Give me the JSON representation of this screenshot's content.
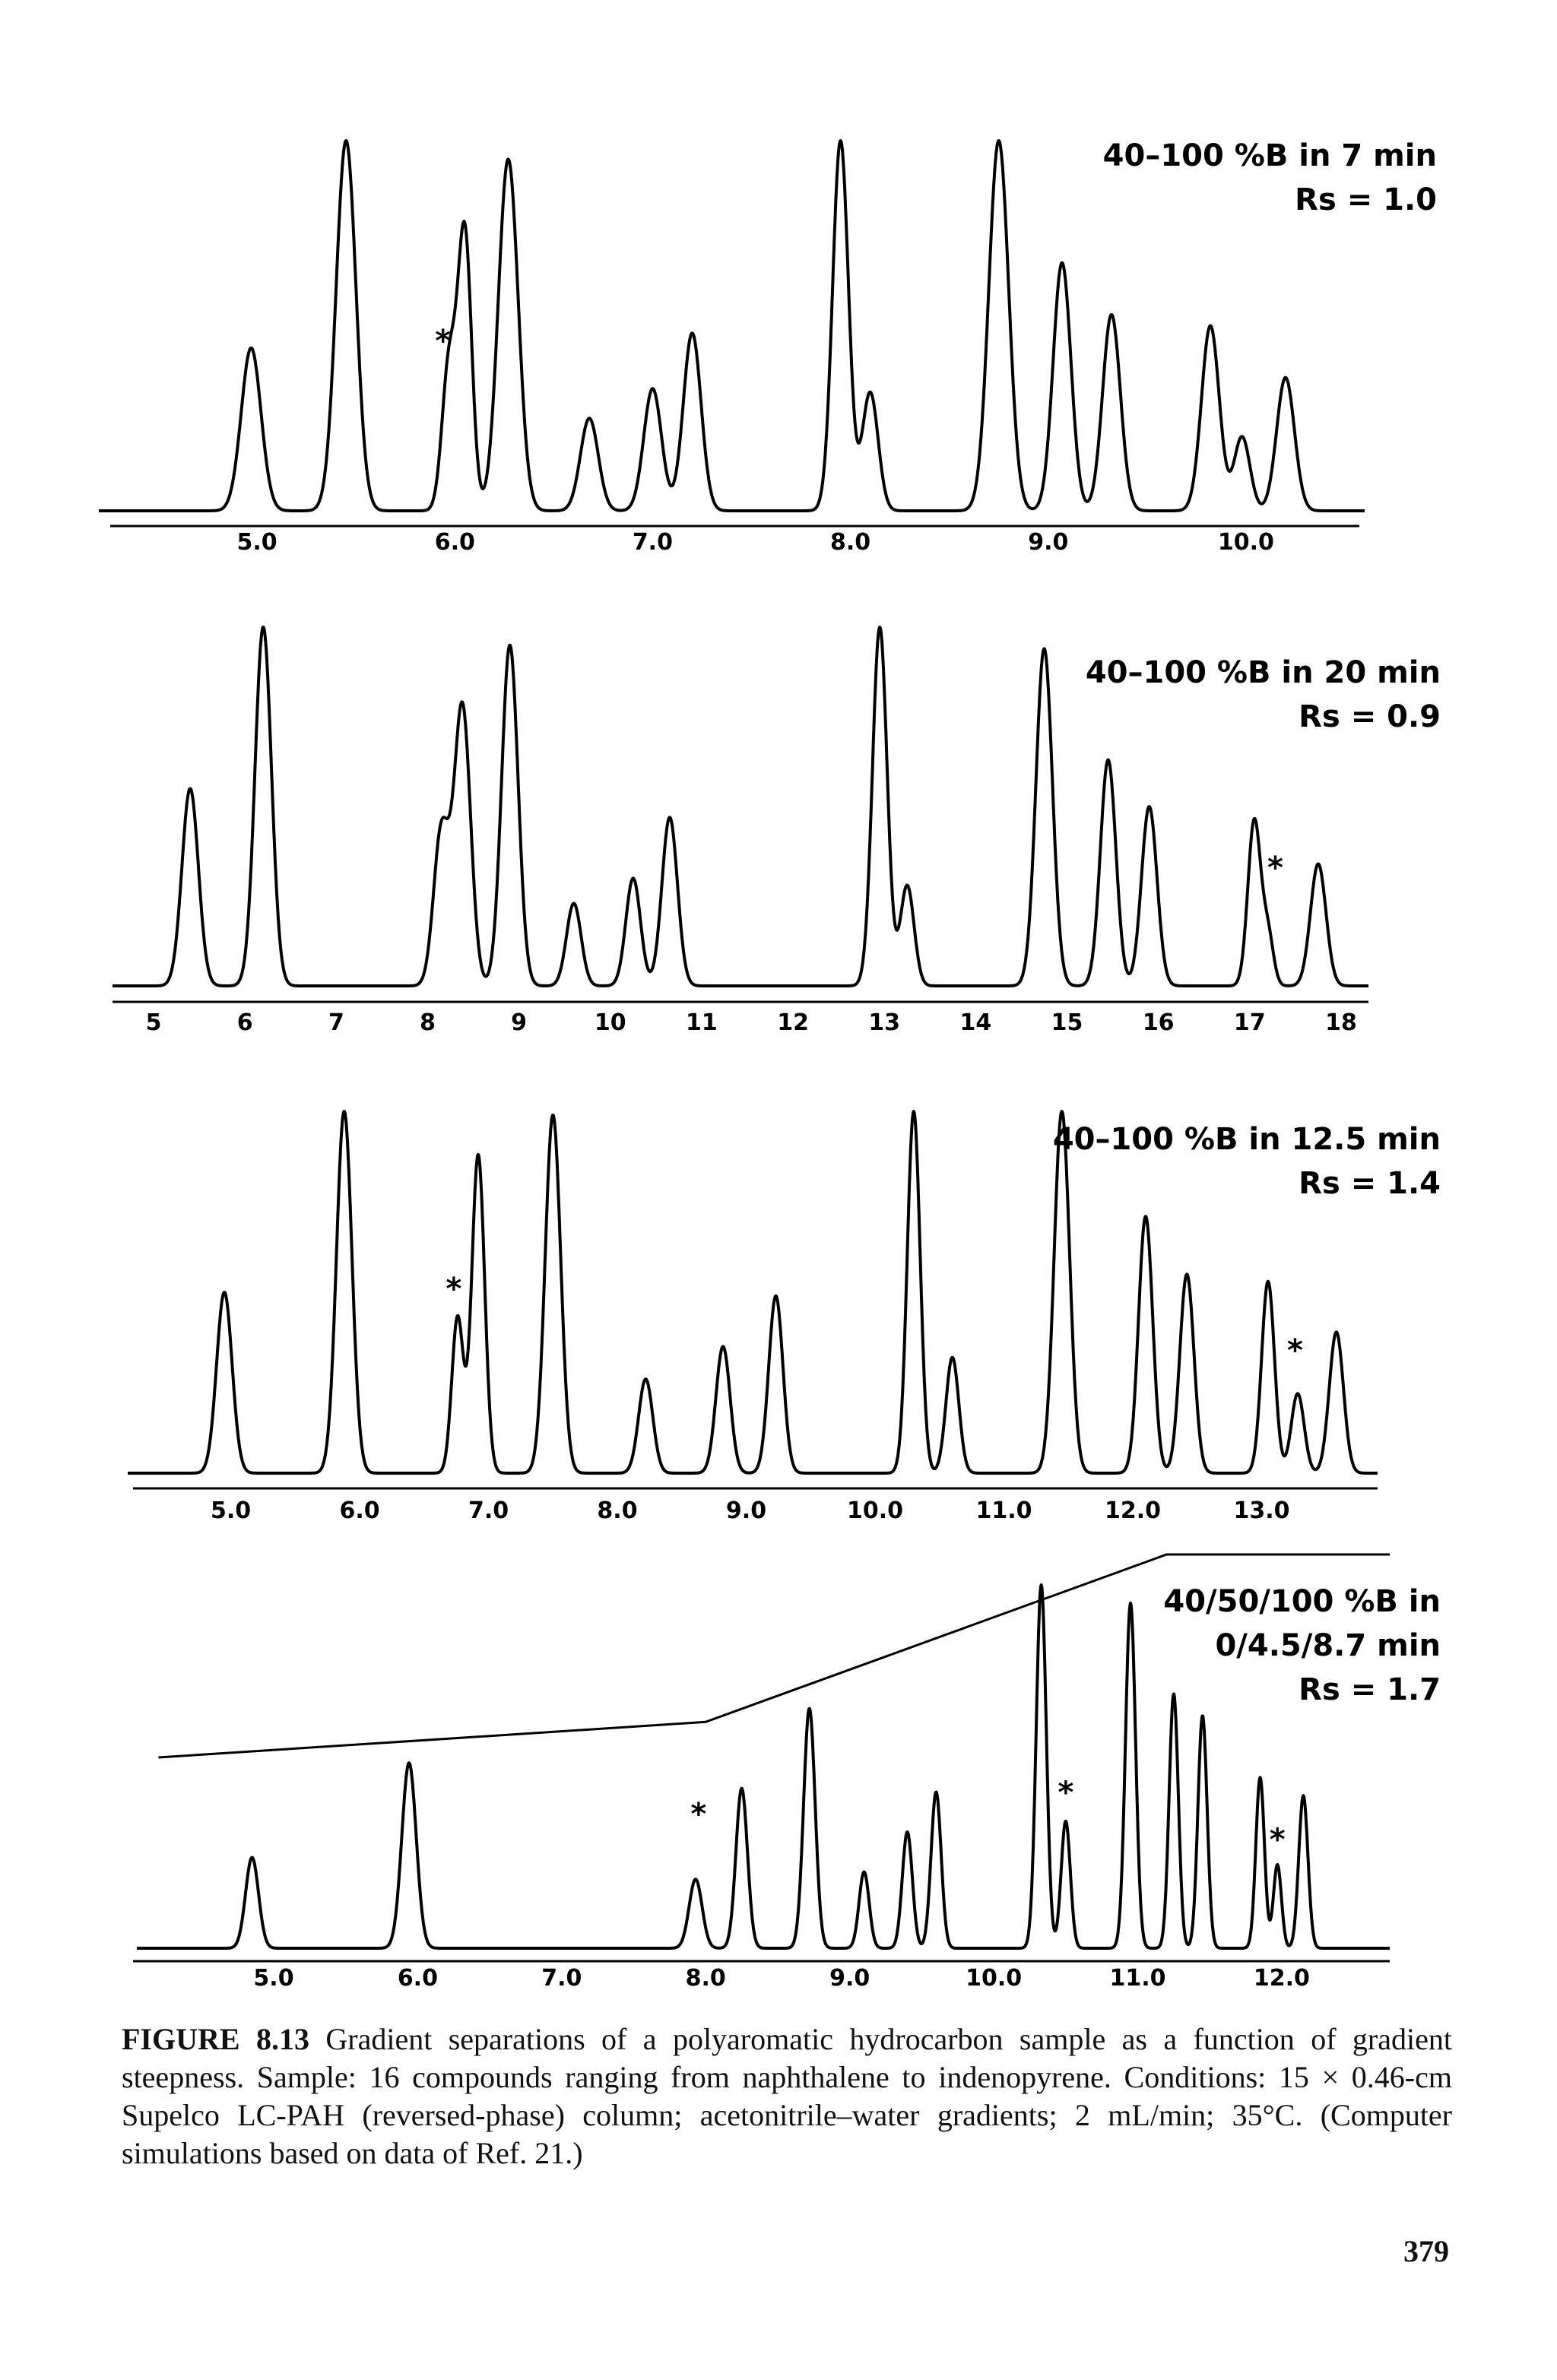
{
  "chart_data": [
    {
      "type": "line",
      "label_lines": [
        "40–100 %B in 7 min",
        "Rs = 1.0"
      ],
      "x_ticks": [
        5.0,
        6.0,
        7.0,
        8.0,
        9.0,
        10.0
      ],
      "x_tick_labels": [
        "5.0",
        "6.0",
        "7.0",
        "8.0",
        "9.0",
        "10.0"
      ],
      "xlim": [
        4.2,
        10.6
      ],
      "ylim": [
        0,
        100
      ],
      "peaks": [
        {
          "x": 4.97,
          "h": 44,
          "w": 0.05
        },
        {
          "x": 5.45,
          "h": 100,
          "w": 0.05
        },
        {
          "x": 5.97,
          "h": 39,
          "w": 0.035
        },
        {
          "x": 6.05,
          "h": 75,
          "w": 0.035
        },
        {
          "x": 6.27,
          "h": 95,
          "w": 0.05
        },
        {
          "x": 6.68,
          "h": 25,
          "w": 0.045
        },
        {
          "x": 7.0,
          "h": 33,
          "w": 0.045
        },
        {
          "x": 7.2,
          "h": 48,
          "w": 0.045
        },
        {
          "x": 7.95,
          "h": 100,
          "w": 0.04
        },
        {
          "x": 8.1,
          "h": 32,
          "w": 0.04
        },
        {
          "x": 8.75,
          "h": 100,
          "w": 0.05
        },
        {
          "x": 9.07,
          "h": 67,
          "w": 0.045
        },
        {
          "x": 9.32,
          "h": 53,
          "w": 0.045
        },
        {
          "x": 9.82,
          "h": 50,
          "w": 0.045
        },
        {
          "x": 9.98,
          "h": 20,
          "w": 0.04
        },
        {
          "x": 10.2,
          "h": 36,
          "w": 0.045
        }
      ],
      "annotations": [
        {
          "text": "*",
          "x": 5.94,
          "y": 46
        }
      ]
    },
    {
      "type": "line",
      "label_lines": [
        "40–100 %B in 20 min",
        "Rs = 0.9"
      ],
      "x_ticks": [
        5,
        6,
        7,
        8,
        9,
        10,
        11,
        12,
        13,
        14,
        15,
        16,
        17,
        18
      ],
      "x_tick_labels": [
        "5",
        "6",
        "7",
        "8",
        "9",
        "10",
        "11",
        "12",
        "13",
        "14",
        "15",
        "16",
        "17",
        "18"
      ],
      "xlim": [
        4.55,
        18.3
      ],
      "ylim": [
        0,
        100
      ],
      "peaks": [
        {
          "x": 5.4,
          "h": 55,
          "w": 0.09
        },
        {
          "x": 6.2,
          "h": 100,
          "w": 0.09
        },
        {
          "x": 8.15,
          "h": 43,
          "w": 0.085
        },
        {
          "x": 8.38,
          "h": 78,
          "w": 0.09
        },
        {
          "x": 8.9,
          "h": 95,
          "w": 0.09
        },
        {
          "x": 9.6,
          "h": 23,
          "w": 0.08
        },
        {
          "x": 10.25,
          "h": 30,
          "w": 0.08
        },
        {
          "x": 10.65,
          "h": 47,
          "w": 0.085
        },
        {
          "x": 12.95,
          "h": 100,
          "w": 0.08
        },
        {
          "x": 13.25,
          "h": 28,
          "w": 0.075
        },
        {
          "x": 14.75,
          "h": 94,
          "w": 0.09
        },
        {
          "x": 15.45,
          "h": 63,
          "w": 0.085
        },
        {
          "x": 15.9,
          "h": 50,
          "w": 0.085
        },
        {
          "x": 17.05,
          "h": 46,
          "w": 0.07
        },
        {
          "x": 17.2,
          "h": 14,
          "w": 0.06
        },
        {
          "x": 17.75,
          "h": 34,
          "w": 0.085
        }
      ],
      "annotations": [
        {
          "text": "*",
          "x": 17.28,
          "y": 33
        }
      ]
    },
    {
      "type": "line",
      "label_lines": [
        "40–100 %B in 12.5 min",
        "Rs = 1.4"
      ],
      "x_ticks": [
        5.0,
        6.0,
        7.0,
        8.0,
        9.0,
        10.0,
        11.0,
        12.0,
        13.0
      ],
      "x_tick_labels": [
        "5.0",
        "6.0",
        "7.0",
        "8.0",
        "9.0",
        "10.0",
        "11.0",
        "12.0",
        "13.0"
      ],
      "xlim": [
        4.2,
        13.9
      ],
      "ylim": [
        0,
        100
      ],
      "peaks": [
        {
          "x": 4.95,
          "h": 50,
          "w": 0.06
        },
        {
          "x": 5.88,
          "h": 100,
          "w": 0.06
        },
        {
          "x": 6.76,
          "h": 43,
          "w": 0.045
        },
        {
          "x": 6.92,
          "h": 88,
          "w": 0.05
        },
        {
          "x": 7.5,
          "h": 99,
          "w": 0.06
        },
        {
          "x": 8.22,
          "h": 26,
          "w": 0.055
        },
        {
          "x": 8.82,
          "h": 35,
          "w": 0.055
        },
        {
          "x": 9.23,
          "h": 49,
          "w": 0.055
        },
        {
          "x": 10.3,
          "h": 100,
          "w": 0.05
        },
        {
          "x": 10.6,
          "h": 32,
          "w": 0.05
        },
        {
          "x": 11.45,
          "h": 100,
          "w": 0.06
        },
        {
          "x": 12.1,
          "h": 71,
          "w": 0.055
        },
        {
          "x": 12.42,
          "h": 55,
          "w": 0.055
        },
        {
          "x": 13.05,
          "h": 53,
          "w": 0.05
        },
        {
          "x": 13.28,
          "h": 22,
          "w": 0.05
        },
        {
          "x": 13.58,
          "h": 39,
          "w": 0.055
        }
      ],
      "annotations": [
        {
          "text": "*",
          "x": 6.73,
          "y": 51
        },
        {
          "text": "*",
          "x": 13.26,
          "y": 34
        }
      ]
    },
    {
      "type": "line",
      "label_lines": [
        "40/50/100 %B in",
        "0/4.5/8.7 min",
        "Rs = 1.7"
      ],
      "x_ticks": [
        5.0,
        6.0,
        7.0,
        8.0,
        9.0,
        10.0,
        11.0,
        12.0
      ],
      "x_tick_labels": [
        "5.0",
        "6.0",
        "7.0",
        "8.0",
        "9.0",
        "10.0",
        "11.0",
        "12.0"
      ],
      "xlim": [
        4.05,
        12.75
      ],
      "ylim": [
        0,
        100
      ],
      "gradient_profile": [
        [
          4.2,
          0
        ],
        [
          8.0,
          7
        ],
        [
          11.2,
          40
        ],
        [
          12.75,
          40
        ]
      ],
      "peaks": [
        {
          "x": 4.85,
          "h": 25,
          "w": 0.045
        },
        {
          "x": 5.94,
          "h": 51,
          "w": 0.05
        },
        {
          "x": 7.93,
          "h": 19,
          "w": 0.045
        },
        {
          "x": 8.25,
          "h": 44,
          "w": 0.04
        },
        {
          "x": 8.72,
          "h": 66,
          "w": 0.04
        },
        {
          "x": 9.1,
          "h": 21,
          "w": 0.035
        },
        {
          "x": 9.4,
          "h": 32,
          "w": 0.035
        },
        {
          "x": 9.6,
          "h": 43,
          "w": 0.035
        },
        {
          "x": 10.33,
          "h": 100,
          "w": 0.035
        },
        {
          "x": 10.5,
          "h": 35,
          "w": 0.032
        },
        {
          "x": 10.95,
          "h": 95,
          "w": 0.035
        },
        {
          "x": 11.25,
          "h": 70,
          "w": 0.032
        },
        {
          "x": 11.45,
          "h": 64,
          "w": 0.032
        },
        {
          "x": 11.85,
          "h": 47,
          "w": 0.03
        },
        {
          "x": 11.97,
          "h": 23,
          "w": 0.028
        },
        {
          "x": 12.15,
          "h": 42,
          "w": 0.032
        }
      ],
      "annotations": [
        {
          "text": "*",
          "x": 7.95,
          "y": 37
        },
        {
          "text": "*",
          "x": 10.5,
          "y": 43
        },
        {
          "text": "*",
          "x": 11.97,
          "y": 30
        }
      ]
    }
  ],
  "caption": {
    "figure_label": "FIGURE 8.13",
    "text": "Gradient separations of a polyaromatic hydrocarbon sample as a function of gradient steepness. Sample: 16 compounds ranging from naphthalene to indenopyrene. Conditions: 15 × 0.46-cm Supelco LC-PAH (reversed-phase) column; acetonitrile–water gradients; 2 mL/min; 35°C. (Computer simulations based on data of Ref. 21.)"
  },
  "page_number": "379"
}
